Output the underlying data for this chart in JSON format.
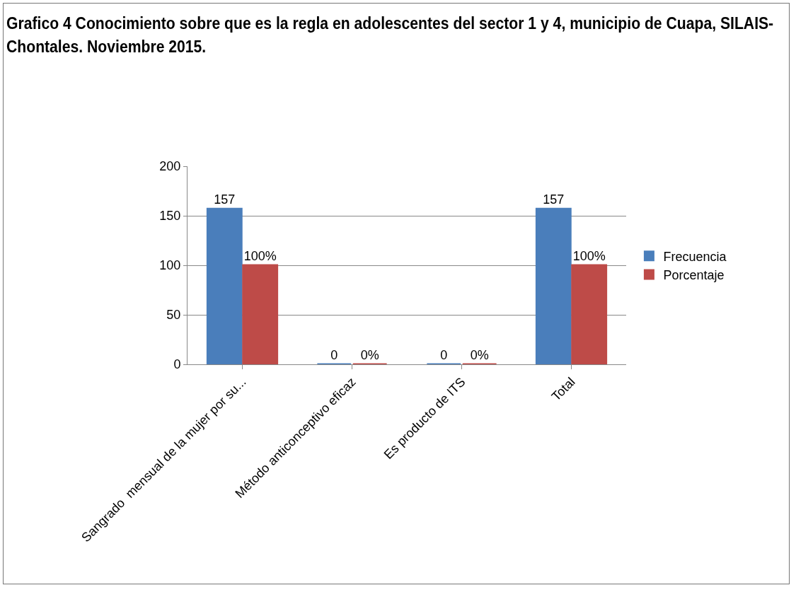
{
  "chart_data": {
    "type": "bar",
    "title": "Grafico 4  Conocimiento sobre que es la regla en adolescentes  del sector 1 y 4, municipio de Cuapa, SILAIS-Chontales. Noviembre 2015.",
    "categories": [
      "Sangrado  mensual de la mujer por su...",
      "Método anticonceptivo eficaz",
      "Es producto de ITS",
      "Total"
    ],
    "series": [
      {
        "name": "Frecuencia",
        "color": "#4a7ebb",
        "values": [
          157,
          0,
          0,
          157
        ],
        "value_labels": [
          "157",
          "0",
          "0",
          "157"
        ]
      },
      {
        "name": "Porcentaje",
        "color": "#be4b48",
        "values": [
          100,
          0,
          0,
          100
        ],
        "value_labels": [
          "100%",
          "0%",
          "0%",
          "100%"
        ]
      }
    ],
    "ylim": [
      0,
      200
    ],
    "yticks": [
      0,
      50,
      100,
      150,
      200
    ],
    "grid": "y",
    "legend": "right"
  }
}
